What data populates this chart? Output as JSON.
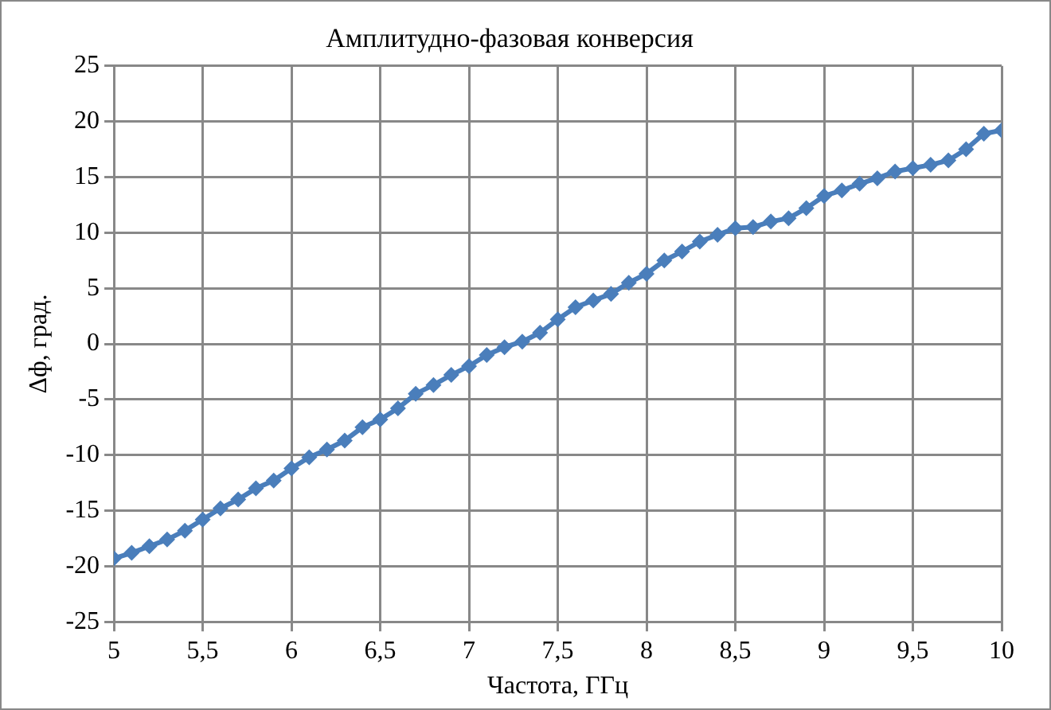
{
  "chart_data": {
    "type": "line",
    "title": "Амплитудно-фазовая конверсия",
    "xlabel": "Частота, ГГц",
    "ylabel": "Δф, град.",
    "x": [
      5,
      5.1,
      5.2,
      5.3,
      5.4,
      5.5,
      5.6,
      5.7,
      5.8,
      5.9,
      6,
      6.1,
      6.2,
      6.3,
      6.4,
      6.5,
      6.6,
      6.7,
      6.8,
      6.9,
      7,
      7.1,
      7.2,
      7.3,
      7.4,
      7.5,
      7.6,
      7.7,
      7.8,
      7.9,
      8,
      8.1,
      8.2,
      8.3,
      8.4,
      8.5,
      8.6,
      8.7,
      8.8,
      8.9,
      9,
      9.1,
      9.2,
      9.3,
      9.4,
      9.5,
      9.6,
      9.7,
      9.8,
      9.9,
      10
    ],
    "series": [
      {
        "color": "#4a7ebb",
        "values": [
          -19.3,
          -18.8,
          -18.2,
          -17.6,
          -16.8,
          -15.8,
          -14.8,
          -14.0,
          -13.0,
          -12.3,
          -11.2,
          -10.2,
          -9.5,
          -8.7,
          -7.5,
          -6.8,
          -5.8,
          -4.5,
          -3.7,
          -2.8,
          -2.0,
          -1.0,
          -0.3,
          0.2,
          1.0,
          2.2,
          3.3,
          3.9,
          4.5,
          5.5,
          6.3,
          7.5,
          8.3,
          9.2,
          9.8,
          10.4,
          10.5,
          11.0,
          11.3,
          12.2,
          13.3,
          13.8,
          14.4,
          14.9,
          15.5,
          15.8,
          16.1,
          16.5,
          17.5,
          18.9,
          19.2
        ]
      }
    ],
    "xlim": [
      5,
      10
    ],
    "xticks": [
      5,
      {
        "value": 5.5,
        "label": "5,5"
      },
      6,
      {
        "value": 6.5,
        "label": "6,5"
      },
      7,
      {
        "value": 7.5,
        "label": "7,5"
      },
      8,
      {
        "value": 8.5,
        "label": "8,5"
      },
      9,
      {
        "value": 9.5,
        "label": "9,5"
      },
      10
    ],
    "ylim": [
      -25,
      25
    ],
    "yticks": [
      -25,
      -20,
      -15,
      -10,
      -5,
      0,
      5,
      10,
      15,
      20,
      25
    ],
    "grid": true,
    "legend": false,
    "marker": "diamond",
    "line_style": "solid"
  }
}
